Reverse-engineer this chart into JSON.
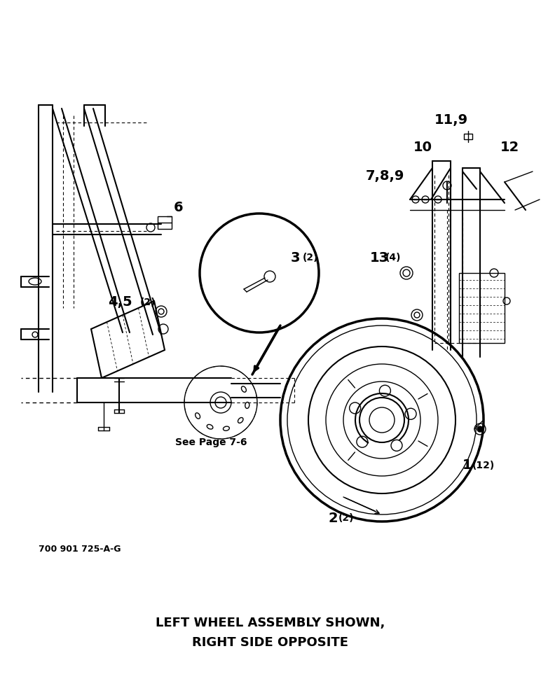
{
  "background_color": "#ffffff",
  "caption_line1": "LEFT WHEEL ASSEMBLY SHOWN,",
  "caption_line2": "RIGHT SIDE OPPOSITE",
  "part_number": "700 901 725-A-G",
  "fig_width": 7.72,
  "fig_height": 10.0,
  "dpi": 100
}
